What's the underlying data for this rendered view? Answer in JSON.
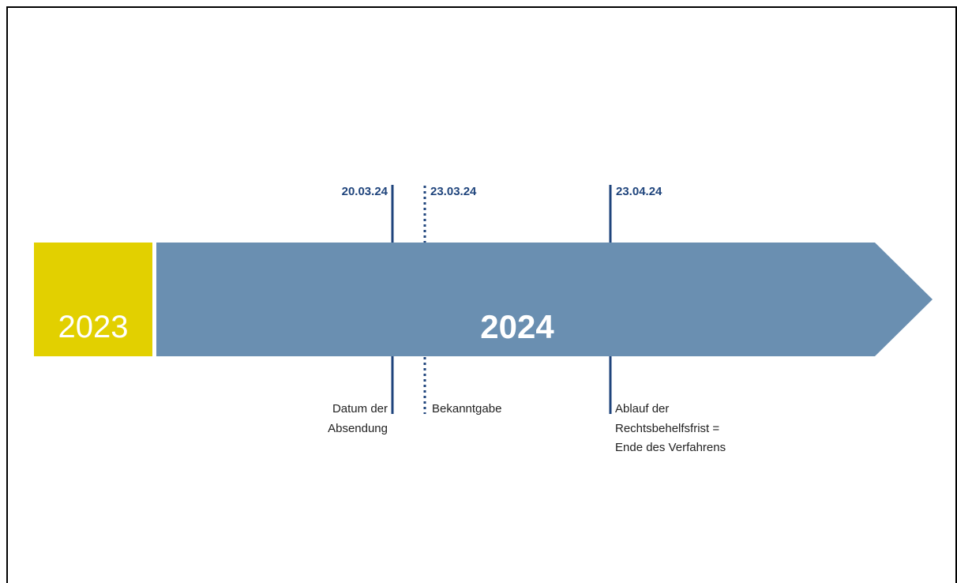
{
  "timeline": {
    "years": [
      "2023",
      "2024"
    ],
    "events": [
      {
        "date": "20.03.24",
        "label_lines": [
          "Datum der",
          "Absendung"
        ]
      },
      {
        "date": "23.03.24",
        "label_lines": [
          "Bekanntgabe"
        ]
      },
      {
        "date": "23.04.24",
        "label_lines": [
          "Ablauf der",
          "Rechtsbehelfsfrist =",
          "Ende des Verfahrens"
        ]
      }
    ]
  }
}
